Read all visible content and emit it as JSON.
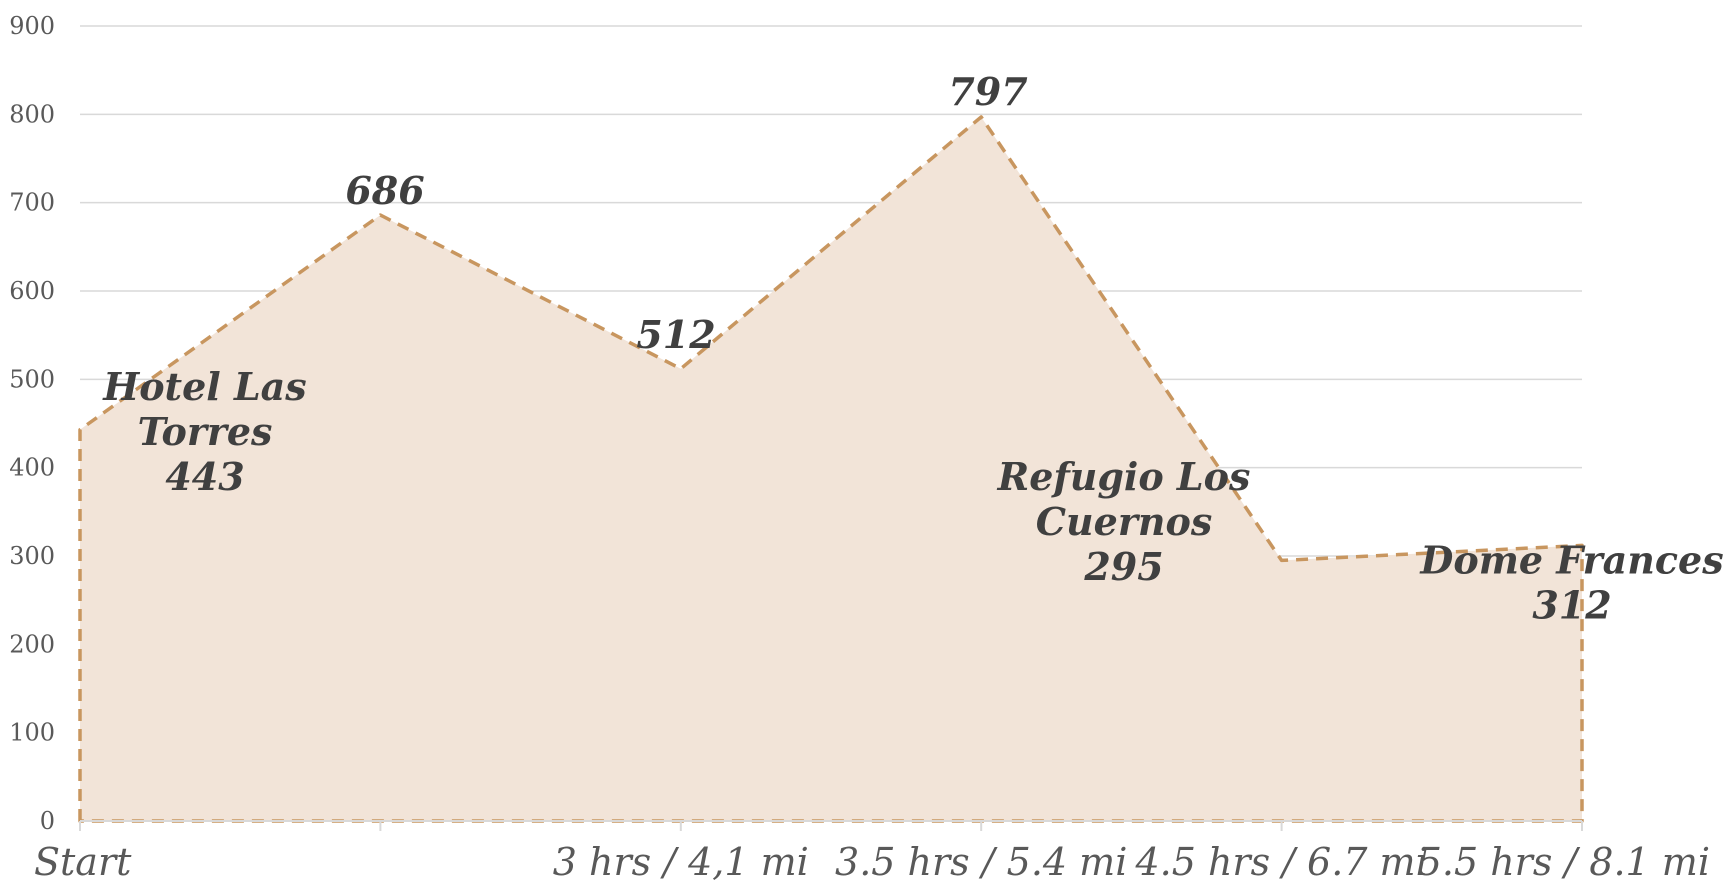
{
  "chart_data": {
    "type": "area",
    "categories": [
      "Start",
      "",
      "3 hrs / 4,1 mi",
      "3.5 hrs / 5.4 mi",
      "4.5 hrs / 6.7 mi",
      "5.5 hrs / 8.1 mi"
    ],
    "values": [
      443,
      686,
      512,
      797,
      295,
      312
    ],
    "data_labels": [
      [
        "Hotel Las",
        "Torres",
        "443"
      ],
      [
        "686"
      ],
      [
        "512"
      ],
      [
        "797"
      ],
      [
        "Refugio Los",
        "Cuernos",
        "295"
      ],
      [
        "Dome Frances",
        "312"
      ]
    ],
    "ylim": [
      0,
      900
    ],
    "yticks": [
      0,
      100,
      200,
      300,
      400,
      500,
      600,
      700,
      800,
      900
    ],
    "grid": true,
    "legend": "none",
    "colors": {
      "fill": "#f2e4d8",
      "line": "#c8965f"
    }
  }
}
